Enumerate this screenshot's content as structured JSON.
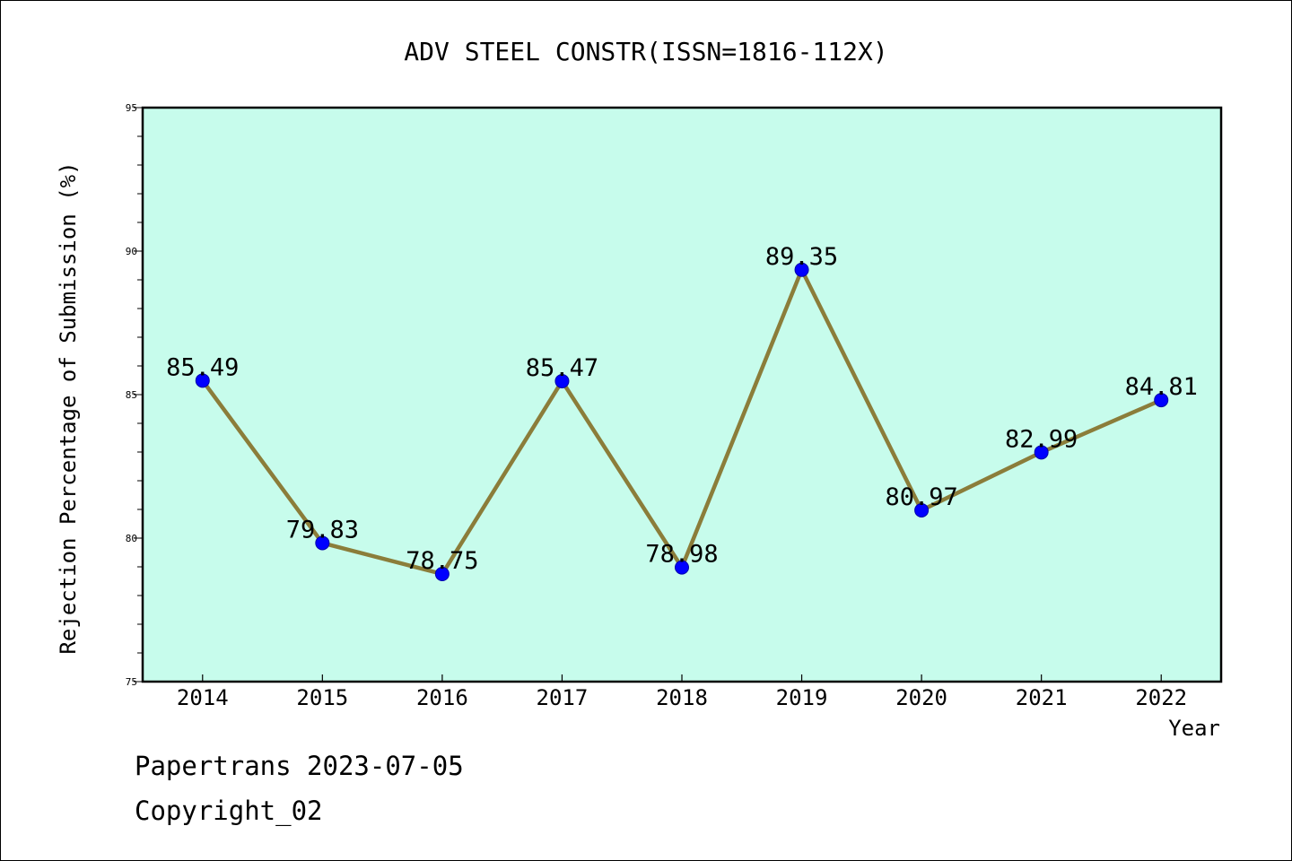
{
  "chart_data": {
    "type": "line",
    "title": "ADV STEEL CONSTR(ISSN=1816-112X)",
    "xlabel": "Year",
    "ylabel": "Rejection Percentage of Submission (%)",
    "categories": [
      "2014",
      "2015",
      "2016",
      "2017",
      "2018",
      "2019",
      "2020",
      "2021",
      "2022"
    ],
    "values": [
      85.49,
      79.83,
      78.75,
      85.47,
      78.98,
      89.35,
      80.97,
      82.99,
      84.81
    ],
    "data_labels": [
      "85.49",
      "79.83",
      "78.75",
      "85.47",
      "78.98",
      "89.35",
      "80.97",
      "82.99",
      "84.81"
    ],
    "ylim": [
      75,
      95
    ],
    "yticks": [
      75,
      80,
      85,
      90,
      95
    ],
    "y_minor_step": 1,
    "grid": false,
    "legend": "none",
    "colors": {
      "plot_background": "#c7fcec",
      "line": "#8b7d3a",
      "marker": "#0000ff"
    }
  },
  "footer": {
    "line1": "Papertrans 2023-07-05",
    "line2": "Copyright_02"
  }
}
